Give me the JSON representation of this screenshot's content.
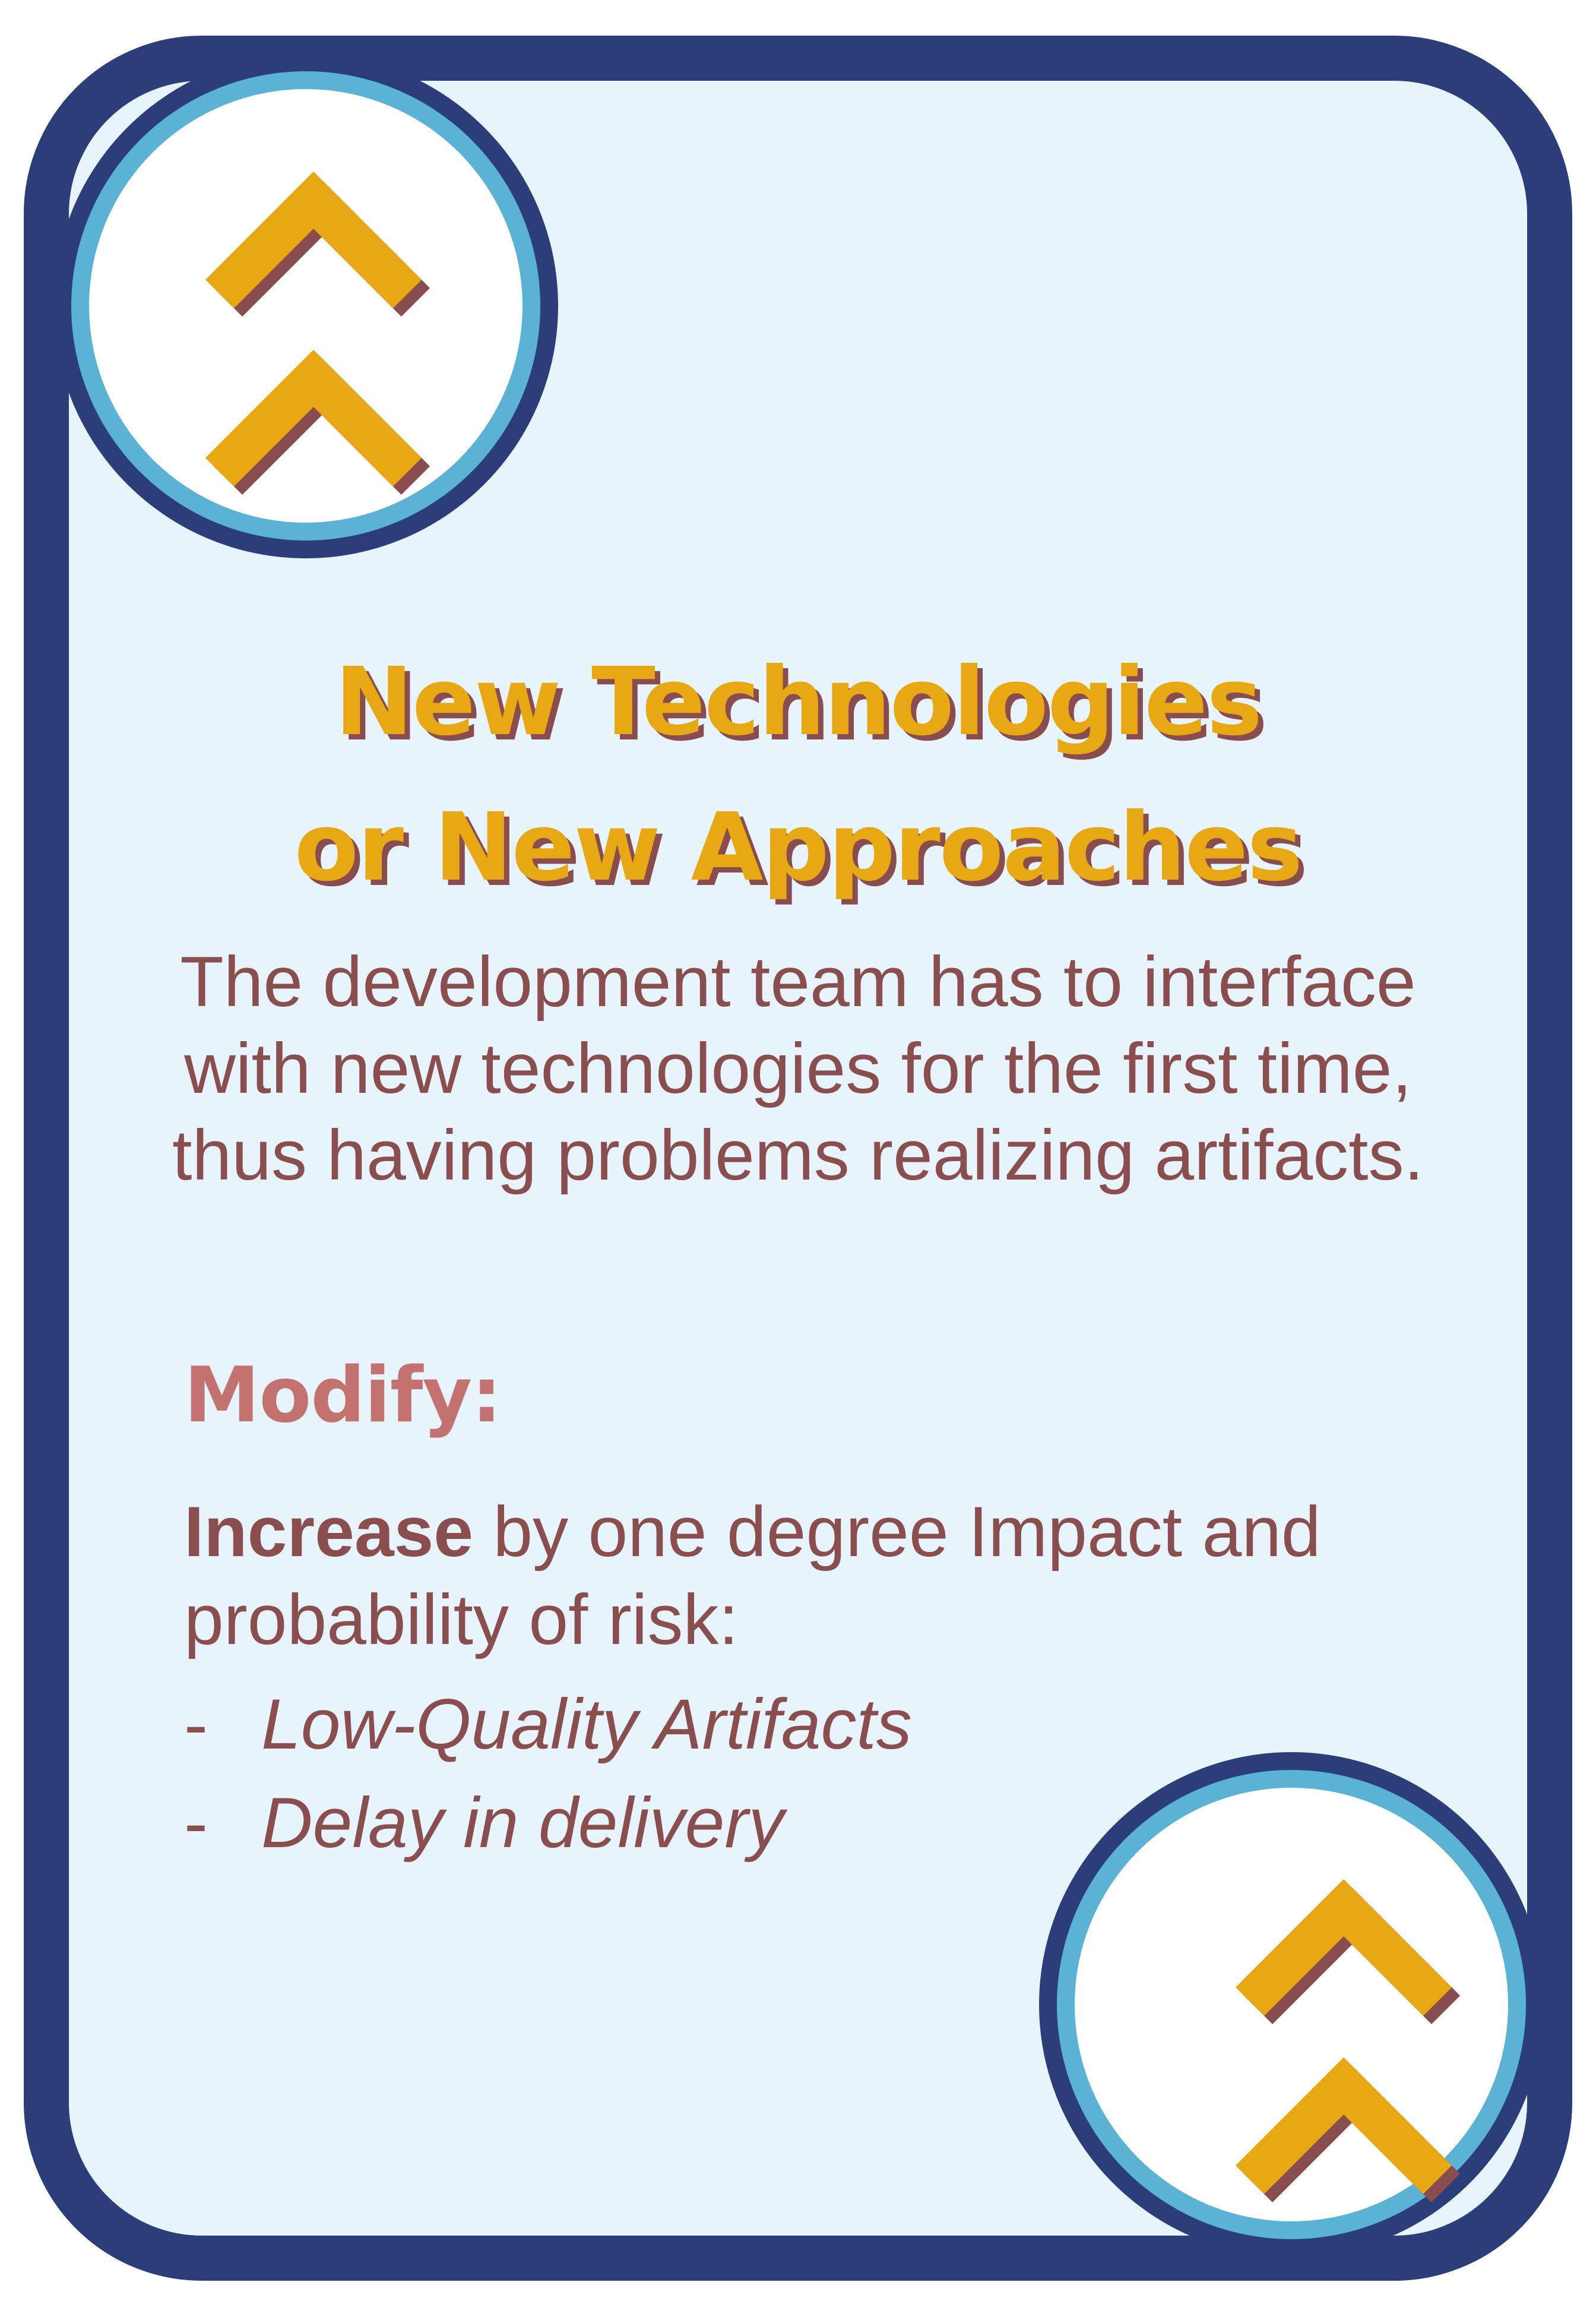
{
  "card": {
    "title_line1": "New Technologies",
    "title_line2": "or New Approaches",
    "description": "The development team has to interface with new technologies for the first time, thus having problems realizing artifacts.",
    "modify_label": "Modify:",
    "effect_bold": "Increase",
    "effect_rest": " by one degree Impact and probability of risk:",
    "risks": [
      {
        "dash": "-",
        "name": "Low-Quality Artifacts"
      },
      {
        "dash": "-",
        "name": "Delay in delivery"
      }
    ],
    "badge_icon": "double-chevron-up-icon"
  },
  "colors": {
    "frame": "#2b3e7a",
    "ring": "#5ab2d4",
    "background": "#e7f4fc",
    "title": "#e8a813",
    "title_shadow": "#8a4d4f",
    "text": "#8b4e4f",
    "modify": "#c4726f"
  }
}
